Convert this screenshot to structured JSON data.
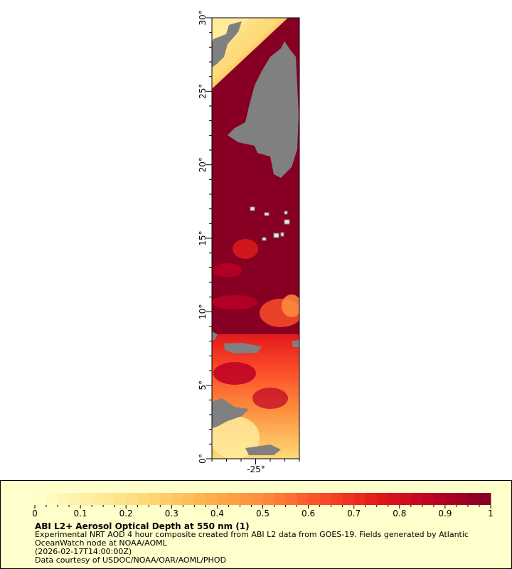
{
  "map": {
    "lat_labels": [
      "0°",
      "5°",
      "10°",
      "15°",
      "20°",
      "25°",
      "30°"
    ],
    "lat_values": [
      0,
      5,
      10,
      15,
      20,
      25,
      30
    ],
    "lon_labels": [
      "-25°"
    ],
    "lon_values": [
      -25
    ],
    "lat_range": [
      0,
      30
    ],
    "lon_range": [
      -28,
      -22
    ],
    "ocean_color": "#870024",
    "land_color": "#808080"
  },
  "legend": {
    "colorbar_ticks": [
      "0",
      "0.1",
      "0.2",
      "0.3",
      "0.4",
      "0.5",
      "0.6",
      "0.7",
      "0.8",
      "0.9",
      "1"
    ],
    "colorbar_range": [
      0,
      1
    ],
    "colormap_stops": [
      "#ffffcc",
      "#ffeda0",
      "#fed976",
      "#feb24c",
      "#fd8d3c",
      "#fc4e2a",
      "#e31a1c",
      "#bd0026",
      "#800026"
    ],
    "title": "ABI L2+ Aerosol Optical Depth at 550 nm (1)",
    "line1": "Experimental NRT AOD 4 hour composite created from ABI L2 data from GOES-19. Fields generated by Atlantic",
    "line2": "OceanWatch node at NOAA/AOML",
    "line3": "(2026-02-17T14:00:00Z)",
    "line4": "Data courtesy of USDOC/NOAA/OAR/AOML/PHOD"
  }
}
